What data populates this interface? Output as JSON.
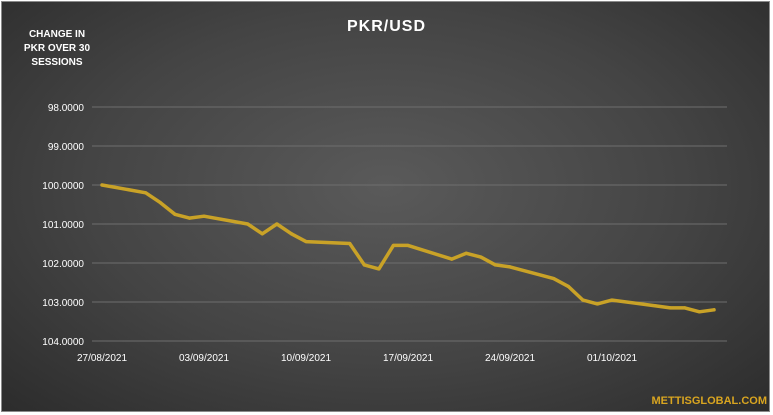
{
  "chart_data": {
    "type": "line",
    "title": "PKR/USD",
    "ylabel_lines": [
      "CHANGE IN",
      "PKR OVER 30",
      "SESSIONS"
    ],
    "y_inverted": true,
    "ylim": [
      98,
      104
    ],
    "y_ticks": [
      98,
      99,
      100,
      101,
      102,
      103,
      104
    ],
    "y_tick_labels": [
      "98.0000",
      "99.0000",
      "100.0000",
      "101.0000",
      "102.0000",
      "103.0000",
      "104.0000"
    ],
    "x_range": [
      "2021-08-27",
      "2021-10-08"
    ],
    "x_ticks": [
      "2021-08-27",
      "2021-09-03",
      "2021-09-10",
      "2021-09-17",
      "2021-09-24",
      "2021-10-01"
    ],
    "x_tick_labels": [
      "27/08/2021",
      "03/09/2021",
      "10/09/2021",
      "17/09/2021",
      "24/09/2021",
      "01/10/2021"
    ],
    "grid": "horizontal",
    "line_color": "#c9a227",
    "series": [
      {
        "x": [
          "2021-08-27",
          "2021-08-30",
          "2021-08-31",
          "2021-09-01",
          "2021-09-02",
          "2021-09-03",
          "2021-09-06",
          "2021-09-07",
          "2021-09-08",
          "2021-09-09",
          "2021-09-10",
          "2021-09-13",
          "2021-09-14",
          "2021-09-15",
          "2021-09-16",
          "2021-09-17",
          "2021-09-20",
          "2021-09-21",
          "2021-09-22",
          "2021-09-23",
          "2021-09-24",
          "2021-09-27",
          "2021-09-28",
          "2021-09-29",
          "2021-09-30",
          "2021-10-01",
          "2021-10-04",
          "2021-10-05",
          "2021-10-06",
          "2021-10-07",
          "2021-10-08"
        ],
        "y": [
          100.0,
          100.2,
          100.45,
          100.75,
          100.85,
          100.8,
          101.0,
          101.25,
          101.0,
          101.25,
          101.45,
          101.5,
          102.05,
          102.15,
          101.55,
          101.55,
          101.9,
          101.75,
          101.85,
          102.05,
          102.1,
          102.4,
          102.6,
          102.95,
          103.05,
          102.95,
          103.1,
          103.15,
          103.15,
          103.25,
          103.2
        ]
      }
    ]
  },
  "watermark": "METTISGLOBAL.COM"
}
